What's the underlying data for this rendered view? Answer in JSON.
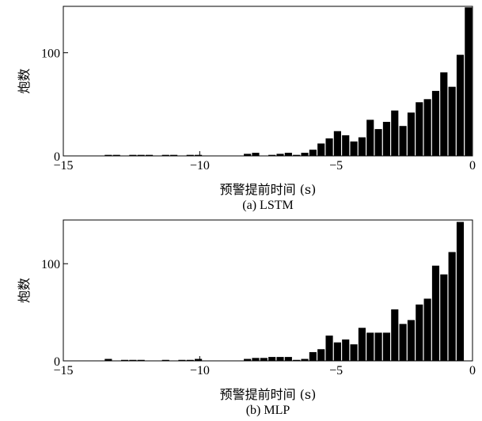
{
  "chart_data": [
    {
      "type": "bar",
      "caption": "(a) LSTM",
      "xlabel": "预警提前时间 (s)",
      "ylabel": "炮数",
      "xlim": [
        -15,
        0
      ],
      "ylim": [
        0,
        145
      ],
      "xticks": [
        -15,
        -10,
        -5,
        0
      ],
      "yticks": [
        0,
        100
      ],
      "bin_width": 0.3,
      "bins": [
        {
          "x": -13.5,
          "y": 1
        },
        {
          "x": -13.2,
          "y": 1
        },
        {
          "x": -12.6,
          "y": 1
        },
        {
          "x": -12.3,
          "y": 1
        },
        {
          "x": -12.0,
          "y": 1
        },
        {
          "x": -11.4,
          "y": 1
        },
        {
          "x": -11.1,
          "y": 1
        },
        {
          "x": -10.5,
          "y": 1
        },
        {
          "x": -10.2,
          "y": 1
        },
        {
          "x": -8.4,
          "y": 2
        },
        {
          "x": -8.1,
          "y": 3
        },
        {
          "x": -7.5,
          "y": 1
        },
        {
          "x": -7.2,
          "y": 2
        },
        {
          "x": -6.9,
          "y": 3
        },
        {
          "x": -6.6,
          "y": 1
        },
        {
          "x": -6.3,
          "y": 3
        },
        {
          "x": -6.0,
          "y": 6
        },
        {
          "x": -5.7,
          "y": 12
        },
        {
          "x": -5.4,
          "y": 17
        },
        {
          "x": -5.1,
          "y": 24
        },
        {
          "x": -4.8,
          "y": 20
        },
        {
          "x": -4.5,
          "y": 14
        },
        {
          "x": -4.2,
          "y": 18
        },
        {
          "x": -3.9,
          "y": 35
        },
        {
          "x": -3.6,
          "y": 26
        },
        {
          "x": -3.3,
          "y": 33
        },
        {
          "x": -3.0,
          "y": 44
        },
        {
          "x": -2.7,
          "y": 29
        },
        {
          "x": -2.4,
          "y": 42
        },
        {
          "x": -2.1,
          "y": 52
        },
        {
          "x": -1.8,
          "y": 55
        },
        {
          "x": -1.5,
          "y": 63
        },
        {
          "x": -1.2,
          "y": 81
        },
        {
          "x": -0.9,
          "y": 67
        },
        {
          "x": -0.6,
          "y": 98
        },
        {
          "x": -0.3,
          "y": 144
        }
      ]
    },
    {
      "type": "bar",
      "caption": "(b) MLP",
      "xlabel": "预警提前时间 (s)",
      "ylabel": "炮数",
      "xlim": [
        -15,
        0
      ],
      "ylim": [
        0,
        145
      ],
      "xticks": [
        -15,
        -10,
        -5,
        0
      ],
      "yticks": [
        0,
        100
      ],
      "bin_width": 0.3,
      "bins": [
        {
          "x": -13.5,
          "y": 2
        },
        {
          "x": -12.9,
          "y": 1
        },
        {
          "x": -12.6,
          "y": 1
        },
        {
          "x": -12.3,
          "y": 1
        },
        {
          "x": -11.4,
          "y": 1
        },
        {
          "x": -10.8,
          "y": 1
        },
        {
          "x": -10.5,
          "y": 1
        },
        {
          "x": -10.2,
          "y": 2
        },
        {
          "x": -8.4,
          "y": 2
        },
        {
          "x": -8.1,
          "y": 3
        },
        {
          "x": -7.8,
          "y": 3
        },
        {
          "x": -7.5,
          "y": 4
        },
        {
          "x": -7.2,
          "y": 4
        },
        {
          "x": -6.9,
          "y": 4
        },
        {
          "x": -6.6,
          "y": 1
        },
        {
          "x": -6.3,
          "y": 2
        },
        {
          "x": -6.0,
          "y": 9
        },
        {
          "x": -5.7,
          "y": 12
        },
        {
          "x": -5.4,
          "y": 26
        },
        {
          "x": -5.1,
          "y": 19
        },
        {
          "x": -4.8,
          "y": 22
        },
        {
          "x": -4.5,
          "y": 17
        },
        {
          "x": -4.2,
          "y": 34
        },
        {
          "x": -3.9,
          "y": 29
        },
        {
          "x": -3.6,
          "y": 29
        },
        {
          "x": -3.3,
          "y": 29
        },
        {
          "x": -3.0,
          "y": 53
        },
        {
          "x": -2.7,
          "y": 38
        },
        {
          "x": -2.4,
          "y": 42
        },
        {
          "x": -2.1,
          "y": 58
        },
        {
          "x": -1.8,
          "y": 64
        },
        {
          "x": -1.5,
          "y": 98
        },
        {
          "x": -1.2,
          "y": 89
        },
        {
          "x": -0.9,
          "y": 112
        },
        {
          "x": -0.6,
          "y": 143
        }
      ]
    }
  ]
}
